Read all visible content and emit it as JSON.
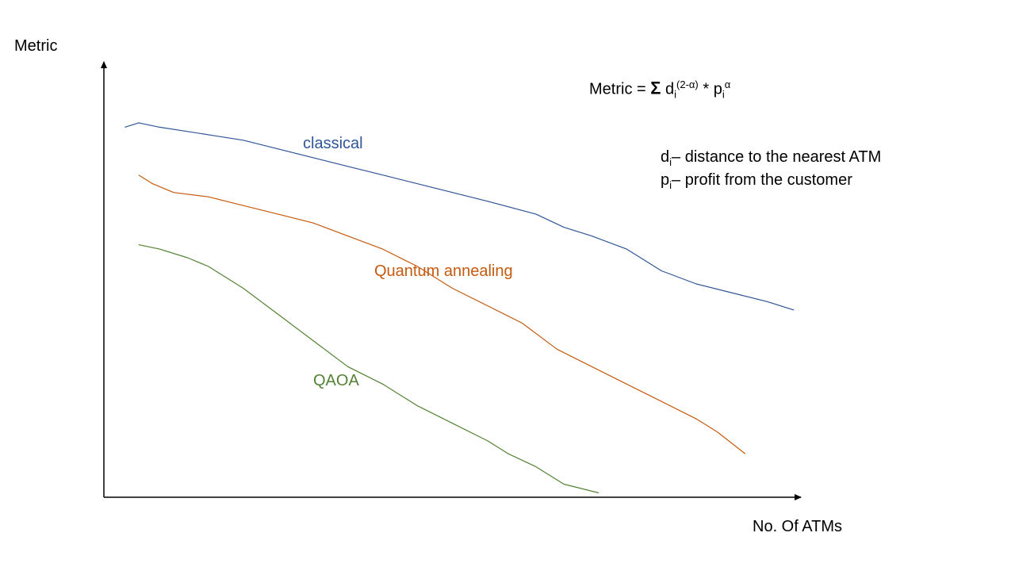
{
  "chart_data": {
    "type": "line",
    "title": "",
    "xlabel": "No. Of ATMs",
    "ylabel": "Metric",
    "grid": false,
    "legend": "inline labels",
    "xlim": [
      0,
      100
    ],
    "ylim": [
      0,
      100
    ],
    "series": [
      {
        "name": "classical",
        "color": "#2f5597",
        "x": [
          3,
          5,
          8,
          12,
          16,
          20,
          25,
          30,
          35,
          40,
          45,
          50,
          55,
          62,
          66,
          70,
          75,
          80,
          85,
          90,
          95,
          99
        ],
        "y": [
          85,
          86,
          85,
          84,
          83,
          82,
          80,
          78,
          76,
          74,
          72,
          70,
          68,
          65,
          62,
          60,
          57,
          52,
          49,
          47,
          45,
          43
        ]
      },
      {
        "name": "Quantum annealing",
        "color": "#c55a11",
        "x": [
          5,
          7,
          10,
          15,
          20,
          25,
          30,
          35,
          40,
          45,
          50,
          55,
          60,
          65,
          70,
          75,
          80,
          85,
          88,
          92
        ],
        "y": [
          74,
          72,
          70,
          69,
          67,
          65,
          63,
          60,
          57,
          53,
          48,
          44,
          40,
          34,
          30,
          26,
          22,
          18,
          15,
          10
        ]
      },
      {
        "name": "QAOA",
        "color": "#548235",
        "x": [
          5,
          8,
          12,
          15,
          20,
          25,
          30,
          35,
          40,
          45,
          50,
          55,
          58,
          62,
          66,
          71
        ],
        "y": [
          58,
          57,
          55,
          53,
          48,
          42,
          36,
          30,
          26,
          21,
          17,
          13,
          10,
          7,
          3,
          1
        ]
      }
    ]
  },
  "formula": {
    "lhs": "Metric =",
    "sigma": "Σ",
    "d": "d",
    "d_sub": "i",
    "d_exp": "(2-α)",
    "times": "*",
    "p": "p",
    "p_sub": "i",
    "p_exp": "α"
  },
  "definitions": [
    {
      "var": "d",
      "sub": "i",
      "text": "– distance to the nearest ATM"
    },
    {
      "var": "p",
      "sub": "i",
      "text": "– profit from the customer"
    }
  ]
}
